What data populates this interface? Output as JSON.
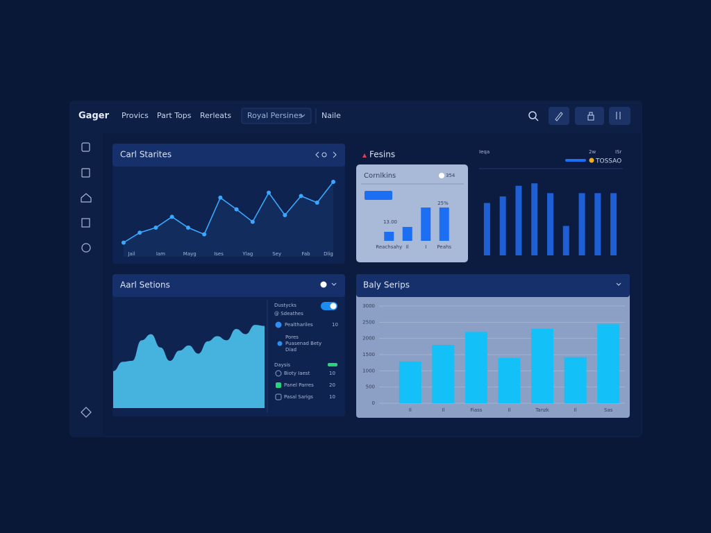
{
  "header": {
    "brand": "Gager",
    "nav": [
      "Provics",
      "Part Tops",
      "Rerleats"
    ],
    "dropdown": "Royal Persines",
    "user": "Naile"
  },
  "panels": [
    {
      "title": "Carl Starites",
      "chart": {
        "type": "line",
        "color": "#3aa8ff",
        "x": [
          0,
          1,
          2,
          3,
          4,
          5,
          6,
          7,
          8,
          9,
          10,
          11,
          12,
          13
        ],
        "values": [
          17,
          29,
          35,
          48,
          35,
          27,
          71,
          57,
          42,
          77,
          50,
          73,
          65,
          90
        ],
        "xlim": [
          0,
          13
        ],
        "ylim": [
          0,
          100
        ],
        "xticks": [
          {
            "value": 0.5,
            "label": "Jail"
          },
          {
            "value": 2.3,
            "label": "Iam"
          },
          {
            "value": 4.1,
            "label": "Mayg"
          },
          {
            "value": 5.9,
            "label": "Ises"
          },
          {
            "value": 7.7,
            "label": "Ylag"
          },
          {
            "value": 9.5,
            "label": "Sey"
          },
          {
            "value": 11.3,
            "label": "Fab"
          },
          {
            "value": 12.7,
            "label": "Dlig"
          }
        ]
      }
    },
    {
      "title": "Fesins",
      "card": {
        "title": "Cornlkins",
        "toggle": "354",
        "annotations": [
          "13.00",
          "25%"
        ],
        "chart": {
          "type": "bar",
          "color": "#1c6ef2",
          "categories": [
            "Reachsahy",
            "Il",
            "I",
            "Peahs"
          ],
          "values": [
            13,
            20,
            48,
            48
          ],
          "ylim": [
            0,
            100
          ]
        }
      },
      "side": {
        "labels": [
          "Ieqa",
          "2w",
          "ISr"
        ],
        "legend": "TOSSAO",
        "chart": {
          "type": "bar",
          "color": "#1f5fd6",
          "values": [
            64,
            72,
            85,
            88,
            76,
            36,
            76,
            76,
            76
          ],
          "ylim": [
            0,
            100
          ]
        }
      }
    },
    {
      "title": "Aarl Setions",
      "chart": {
        "type": "area",
        "color": "#4cc3ee",
        "values": [
          36,
          45,
          46,
          66,
          72,
          59,
          46,
          56,
          61,
          53,
          65,
          70,
          66,
          77,
          72,
          81,
          80
        ],
        "ylim": [
          0,
          100
        ]
      },
      "list": {
        "heading": "Dustycks",
        "subheading": "@ Sdeathes",
        "items": [
          {
            "label": "Pealthariles",
            "value": 10
          }
        ],
        "note": [
          "Pores",
          "Puasenad Bety",
          "Diad"
        ],
        "section": "Daysis",
        "items2": [
          {
            "label": "Bioty Iaest",
            "value": 10
          },
          {
            "label": "Panel Parres",
            "value": 20
          },
          {
            "label": "Pasal Sarigs",
            "value": 10
          }
        ]
      }
    },
    {
      "title": "Baly Serips",
      "chart": {
        "type": "bar",
        "color": "#13c0f7",
        "categories": [
          "Il",
          "Il",
          "Fiass",
          "Il",
          "Tanzk",
          "Il",
          "Sas"
        ],
        "values": [
          1290,
          1800,
          2200,
          1400,
          2300,
          1420,
          2450
        ],
        "ylim": [
          0,
          3000
        ],
        "yticks": [
          0,
          500,
          1000,
          1500,
          2000,
          2500,
          3000
        ],
        "grid": true
      }
    }
  ]
}
